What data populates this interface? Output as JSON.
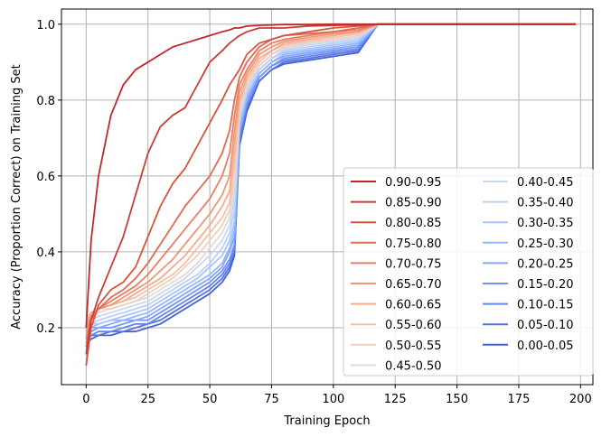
{
  "chart_data": {
    "type": "line",
    "xlabel": "Training Epoch",
    "ylabel": "Accuracy (Proportion Correct) on Training Set",
    "xlim": [
      -10,
      205
    ],
    "ylim": [
      0.05,
      1.04
    ],
    "xticks": [
      0,
      25,
      50,
      75,
      100,
      125,
      150,
      175,
      200
    ],
    "yticks": [
      0.2,
      0.4,
      0.6,
      0.8,
      1.0
    ],
    "xtick_labels": [
      "0",
      "25",
      "50",
      "75",
      "100",
      "125",
      "150",
      "175",
      "200"
    ],
    "ytick_labels": [
      "0.2",
      "0.4",
      "0.6",
      "0.8",
      "1.0"
    ],
    "grid": true,
    "legend_position": "lower-right",
    "legend_columns": 2,
    "epochs": [
      0,
      2,
      5,
      10,
      15,
      20,
      25,
      30,
      35,
      40,
      45,
      50,
      55,
      58,
      60,
      62,
      65,
      70,
      75,
      80,
      90,
      100,
      110,
      118,
      122,
      125,
      150,
      175,
      198
    ],
    "series": [
      {
        "name": "0.90-0.95",
        "color": "#c0282d",
        "values": [
          0.2,
          0.43,
          0.6,
          0.76,
          0.84,
          0.88,
          0.9,
          0.92,
          0.94,
          0.95,
          0.96,
          0.97,
          0.98,
          0.985,
          0.99,
          0.99,
          0.995,
          0.997,
          0.998,
          0.999,
          0.999,
          1.0,
          1.0,
          1.0,
          1.0,
          1.0,
          1.0,
          1.0,
          1.0
        ]
      },
      {
        "name": "0.85-0.90",
        "color": "#ca3d36",
        "values": [
          0.13,
          0.22,
          0.28,
          0.36,
          0.44,
          0.55,
          0.66,
          0.73,
          0.76,
          0.78,
          0.84,
          0.9,
          0.93,
          0.95,
          0.96,
          0.97,
          0.98,
          0.99,
          0.99,
          0.99,
          0.995,
          0.997,
          0.998,
          1.0,
          1.0,
          1.0,
          1.0,
          1.0,
          1.0
        ]
      },
      {
        "name": "0.80-0.85",
        "color": "#d65440",
        "values": [
          0.1,
          0.2,
          0.26,
          0.3,
          0.32,
          0.36,
          0.44,
          0.52,
          0.58,
          0.62,
          0.68,
          0.74,
          0.8,
          0.84,
          0.86,
          0.88,
          0.92,
          0.95,
          0.96,
          0.97,
          0.98,
          0.99,
          0.995,
          1.0,
          1.0,
          1.0,
          1.0,
          1.0,
          1.0
        ]
      },
      {
        "name": "0.75-0.80",
        "color": "#e06a52",
        "values": [
          0.15,
          0.22,
          0.25,
          0.28,
          0.3,
          0.33,
          0.37,
          0.42,
          0.47,
          0.52,
          0.56,
          0.6,
          0.66,
          0.72,
          0.8,
          0.86,
          0.9,
          0.94,
          0.96,
          0.97,
          0.975,
          0.98,
          0.99,
          1.0,
          1.0,
          1.0,
          1.0,
          1.0,
          1.0
        ]
      },
      {
        "name": "0.70-0.75",
        "color": "#e98064",
        "values": [
          0.17,
          0.23,
          0.25,
          0.27,
          0.29,
          0.31,
          0.34,
          0.38,
          0.42,
          0.46,
          0.5,
          0.54,
          0.6,
          0.66,
          0.76,
          0.84,
          0.88,
          0.93,
          0.95,
          0.96,
          0.97,
          0.98,
          0.985,
          1.0,
          1.0,
          1.0,
          1.0,
          1.0,
          1.0
        ]
      },
      {
        "name": "0.65-0.70",
        "color": "#f09678",
        "values": [
          0.19,
          0.23,
          0.25,
          0.26,
          0.28,
          0.3,
          0.32,
          0.35,
          0.38,
          0.42,
          0.46,
          0.5,
          0.55,
          0.6,
          0.72,
          0.82,
          0.87,
          0.92,
          0.94,
          0.955,
          0.965,
          0.975,
          0.98,
          1.0,
          1.0,
          1.0,
          1.0,
          1.0,
          1.0
        ]
      },
      {
        "name": "0.60-0.65",
        "color": "#f4ab8e",
        "values": [
          0.2,
          0.24,
          0.25,
          0.26,
          0.27,
          0.29,
          0.31,
          0.33,
          0.36,
          0.39,
          0.43,
          0.47,
          0.52,
          0.56,
          0.68,
          0.8,
          0.86,
          0.91,
          0.93,
          0.95,
          0.96,
          0.97,
          0.98,
          1.0,
          1.0,
          1.0,
          1.0,
          1.0,
          1.0
        ]
      },
      {
        "name": "0.55-0.60",
        "color": "#f5c0a7",
        "values": [
          0.21,
          0.24,
          0.25,
          0.26,
          0.27,
          0.28,
          0.3,
          0.32,
          0.34,
          0.37,
          0.41,
          0.45,
          0.49,
          0.53,
          0.64,
          0.79,
          0.85,
          0.9,
          0.93,
          0.945,
          0.955,
          0.965,
          0.975,
          1.0,
          1.0,
          1.0,
          1.0,
          1.0,
          1.0
        ]
      },
      {
        "name": "0.50-0.55",
        "color": "#edd1c2",
        "values": [
          0.22,
          0.24,
          0.25,
          0.25,
          0.26,
          0.27,
          0.29,
          0.31,
          0.33,
          0.36,
          0.39,
          0.43,
          0.47,
          0.51,
          0.6,
          0.78,
          0.84,
          0.89,
          0.92,
          0.94,
          0.95,
          0.96,
          0.97,
          1.0,
          1.0,
          1.0,
          1.0,
          1.0,
          1.0
        ]
      },
      {
        "name": "0.45-0.50",
        "color": "#dddcdc",
        "values": [
          0.21,
          0.23,
          0.24,
          0.25,
          0.26,
          0.27,
          0.28,
          0.3,
          0.32,
          0.34,
          0.37,
          0.41,
          0.45,
          0.49,
          0.57,
          0.77,
          0.84,
          0.89,
          0.92,
          0.94,
          0.95,
          0.96,
          0.97,
          1.0,
          1.0,
          1.0,
          1.0,
          1.0,
          1.0
        ]
      },
      {
        "name": "0.40-0.45",
        "color": "#cad8ef",
        "values": [
          0.2,
          0.22,
          0.23,
          0.24,
          0.25,
          0.26,
          0.27,
          0.29,
          0.31,
          0.33,
          0.36,
          0.39,
          0.43,
          0.47,
          0.54,
          0.76,
          0.83,
          0.89,
          0.92,
          0.935,
          0.945,
          0.955,
          0.965,
          1.0,
          1.0,
          1.0,
          1.0,
          1.0,
          1.0
        ]
      },
      {
        "name": "0.35-0.40",
        "color": "#b9d0f9",
        "values": [
          0.19,
          0.21,
          0.22,
          0.23,
          0.24,
          0.25,
          0.26,
          0.28,
          0.3,
          0.32,
          0.34,
          0.37,
          0.41,
          0.45,
          0.51,
          0.75,
          0.82,
          0.88,
          0.91,
          0.93,
          0.94,
          0.95,
          0.96,
          1.0,
          1.0,
          1.0,
          1.0,
          1.0,
          1.0
        ]
      },
      {
        "name": "0.30-0.35",
        "color": "#a7c5fe",
        "values": [
          0.19,
          0.21,
          0.21,
          0.22,
          0.23,
          0.24,
          0.25,
          0.27,
          0.29,
          0.31,
          0.33,
          0.36,
          0.39,
          0.43,
          0.48,
          0.74,
          0.82,
          0.88,
          0.91,
          0.925,
          0.935,
          0.945,
          0.955,
          1.0,
          1.0,
          1.0,
          1.0,
          1.0,
          1.0
        ]
      },
      {
        "name": "0.25-0.30",
        "color": "#96b7ff",
        "values": [
          0.18,
          0.2,
          0.21,
          0.22,
          0.22,
          0.23,
          0.24,
          0.26,
          0.28,
          0.3,
          0.32,
          0.34,
          0.37,
          0.41,
          0.46,
          0.73,
          0.81,
          0.87,
          0.9,
          0.92,
          0.93,
          0.94,
          0.95,
          1.0,
          1.0,
          1.0,
          1.0,
          1.0,
          1.0
        ]
      },
      {
        "name": "0.20-0.25",
        "color": "#85a8fc",
        "values": [
          0.18,
          0.2,
          0.2,
          0.21,
          0.22,
          0.22,
          0.23,
          0.25,
          0.27,
          0.29,
          0.31,
          0.33,
          0.36,
          0.4,
          0.44,
          0.72,
          0.8,
          0.87,
          0.9,
          0.915,
          0.925,
          0.935,
          0.945,
          1.0,
          1.0,
          1.0,
          1.0,
          1.0,
          1.0
        ]
      },
      {
        "name": "0.15-0.20",
        "color": "#7396f5",
        "values": [
          0.17,
          0.19,
          0.2,
          0.2,
          0.21,
          0.22,
          0.22,
          0.24,
          0.26,
          0.28,
          0.3,
          0.32,
          0.35,
          0.38,
          0.42,
          0.71,
          0.79,
          0.86,
          0.89,
          0.91,
          0.92,
          0.93,
          0.94,
          1.0,
          1.0,
          1.0,
          1.0,
          1.0,
          1.0
        ]
      },
      {
        "name": "0.10-0.15",
        "color": "#6384eb",
        "values": [
          0.17,
          0.18,
          0.19,
          0.19,
          0.2,
          0.21,
          0.21,
          0.23,
          0.25,
          0.27,
          0.29,
          0.31,
          0.34,
          0.37,
          0.41,
          0.7,
          0.79,
          0.86,
          0.89,
          0.905,
          0.915,
          0.925,
          0.935,
          1.0,
          1.0,
          1.0,
          1.0,
          1.0,
          1.0
        ]
      },
      {
        "name": "0.05-0.10",
        "color": "#5572df",
        "values": [
          0.16,
          0.18,
          0.18,
          0.19,
          0.19,
          0.2,
          0.21,
          0.22,
          0.24,
          0.26,
          0.28,
          0.3,
          0.33,
          0.36,
          0.4,
          0.69,
          0.78,
          0.85,
          0.88,
          0.9,
          0.91,
          0.92,
          0.93,
          1.0,
          1.0,
          1.0,
          1.0,
          1.0,
          1.0
        ]
      },
      {
        "name": "0.00-0.05",
        "color": "#465fcf",
        "values": [
          0.16,
          0.17,
          0.18,
          0.18,
          0.19,
          0.19,
          0.2,
          0.21,
          0.23,
          0.25,
          0.27,
          0.29,
          0.32,
          0.35,
          0.39,
          0.68,
          0.77,
          0.85,
          0.88,
          0.895,
          0.905,
          0.915,
          0.925,
          1.0,
          1.0,
          1.0,
          1.0,
          1.0,
          1.0
        ]
      }
    ]
  }
}
